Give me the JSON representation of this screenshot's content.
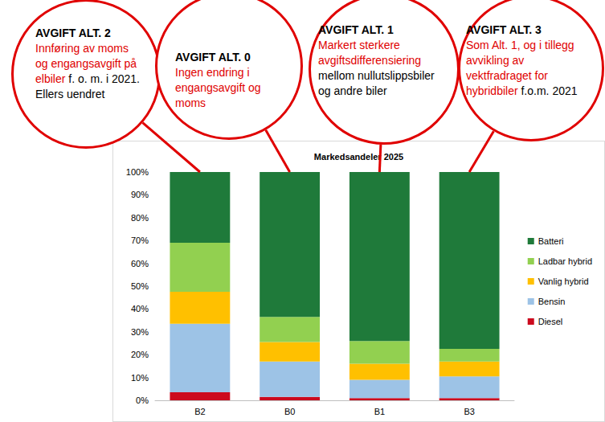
{
  "chart_data": {
    "type": "bar",
    "title": "Markedsandeler 2025",
    "categories": [
      "B2",
      "B0",
      "B1",
      "B3"
    ],
    "stacked": true,
    "grid": false,
    "legend": "right",
    "ylim": [
      0,
      100
    ],
    "yticks": [
      {
        "value": 0,
        "label": "0%"
      },
      {
        "value": 10,
        "label": "10%"
      },
      {
        "value": 20,
        "label": "20%"
      },
      {
        "value": 30,
        "label": "30%"
      },
      {
        "value": 40,
        "label": "40%"
      },
      {
        "value": 50,
        "label": "50%"
      },
      {
        "value": 60,
        "label": "60%"
      },
      {
        "value": 70,
        "label": "70%"
      },
      {
        "value": 80,
        "label": "80%"
      },
      {
        "value": 90,
        "label": "90%"
      },
      {
        "value": 100,
        "label": "100%"
      }
    ],
    "series": [
      {
        "name": "Diesel",
        "color": "#cc0a1e",
        "values": [
          3.5,
          1.5,
          1,
          1
        ]
      },
      {
        "name": "Bensin",
        "color": "#9dc3e6",
        "values": [
          30,
          15.5,
          8,
          9.5
        ]
      },
      {
        "name": "Vanlig hybrid",
        "color": "#ffc000",
        "values": [
          14,
          8.5,
          7,
          6.5
        ]
      },
      {
        "name": "Ladbar hybrid",
        "color": "#92d050",
        "values": [
          21.5,
          11,
          10,
          5.5
        ]
      },
      {
        "name": "Batteri",
        "color": "#1f7a3a",
        "values": [
          31,
          63.5,
          74,
          77.5
        ]
      }
    ],
    "annotations": [
      {
        "category": "B2",
        "title": "AVGIFT ALT. 2",
        "text": [
          {
            "text": "Innføring av moms og engangsavgift på elbiler",
            "color": "#e00000"
          },
          {
            "text": "f. o. m. i 2021. Ellers uendret",
            "color": "#000000"
          }
        ]
      },
      {
        "category": "B0",
        "title": "AVGIFT ALT. 0",
        "text": [
          {
            "text": "Ingen endring i engangsavgift og moms",
            "color": "#e00000"
          }
        ]
      },
      {
        "category": "B1",
        "title": "AVGIFT ALT. 1",
        "text": [
          {
            "text": "Markert sterkere avgiftsdifferensiering",
            "color": "#e00000"
          },
          {
            "text": "mellom nullutslippsbiler og andre biler",
            "color": "#000000"
          }
        ]
      },
      {
        "category": "B3",
        "title": "AVGIFT ALT. 3",
        "text": [
          {
            "text": "Som Alt. 1, og i tillegg avvikling av vektfradraget for hybridbiler",
            "color": "#e00000"
          },
          {
            "text": "f.o.m. 2021",
            "color": "#000000"
          }
        ]
      }
    ]
  }
}
